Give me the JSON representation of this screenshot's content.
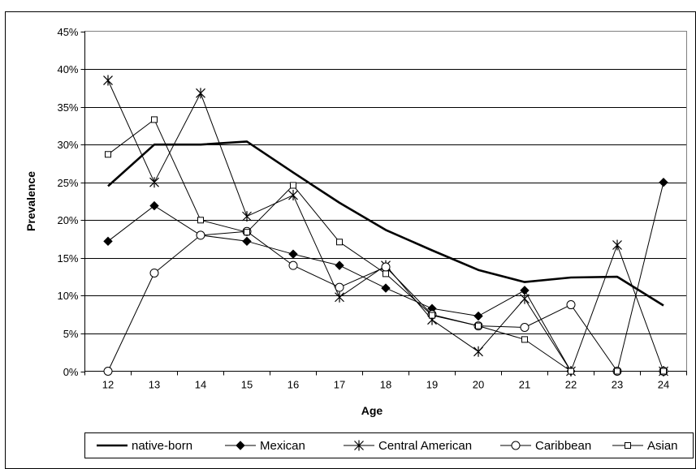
{
  "heading_fragment_left": "",
  "heading_fragment_right": "",
  "chart_data": {
    "type": "line",
    "xlabel": "Age",
    "ylabel": "Prevalence",
    "x": [
      12,
      13,
      14,
      15,
      16,
      17,
      18,
      19,
      20,
      21,
      22,
      23,
      24
    ],
    "ylim": [
      0,
      45
    ],
    "yticks": [
      0,
      5,
      10,
      15,
      20,
      25,
      30,
      35,
      40,
      45
    ],
    "ytick_labels": [
      "0%",
      "5%",
      "10%",
      "15%",
      "20%",
      "25%",
      "30%",
      "35%",
      "40%",
      "45%"
    ],
    "grid": "horizontal",
    "legend_position": "bottom",
    "series": [
      {
        "name": "native-born",
        "marker": "none",
        "color": "#000000",
        "values": [
          24.5,
          30.0,
          30.0,
          30.4,
          26.3,
          22.3,
          18.7,
          16.0,
          13.4,
          11.8,
          12.4,
          12.5,
          8.7
        ]
      },
      {
        "name": "Mexican",
        "marker": "diamond",
        "color": "#000000",
        "values": [
          17.2,
          21.9,
          18.0,
          17.2,
          15.5,
          14.0,
          11.0,
          8.3,
          7.3,
          10.7,
          0.0,
          0.0,
          25.0
        ]
      },
      {
        "name": "Central American",
        "marker": "star",
        "color": "#000000",
        "values": [
          38.5,
          25.0,
          36.8,
          20.5,
          23.3,
          9.8,
          14.0,
          6.8,
          2.6,
          9.6,
          0.0,
          16.7,
          0.0
        ]
      },
      {
        "name": "Caribbean",
        "marker": "circle",
        "color": "#000000",
        "values": [
          0.0,
          13.0,
          18.0,
          18.5,
          14.0,
          11.1,
          13.8,
          7.5,
          6.0,
          5.8,
          8.8,
          0.0,
          0.0
        ]
      },
      {
        "name": "Asian",
        "marker": "square",
        "color": "#000000",
        "values": [
          28.7,
          33.3,
          20.0,
          18.4,
          24.6,
          17.1,
          12.9,
          7.4,
          6.0,
          4.2,
          0.0,
          0.0,
          0.0
        ]
      }
    ]
  }
}
